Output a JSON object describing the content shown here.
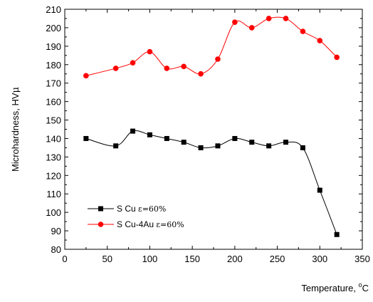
{
  "chart_data": {
    "type": "line",
    "xlabel": "Temperature, ",
    "xlabel_unit": "C",
    "xlabel_superscript": "o",
    "ylabel": "Microhardness, HV",
    "ylabel_unit": "μ",
    "xlim": [
      0,
      350
    ],
    "ylim": [
      80,
      210
    ],
    "xticks": [
      0,
      50,
      100,
      150,
      200,
      250,
      300,
      350
    ],
    "yticks": [
      80,
      90,
      100,
      110,
      120,
      130,
      140,
      150,
      160,
      170,
      180,
      190,
      200,
      210
    ],
    "grid": false,
    "legend_position": "bottom-left",
    "series": [
      {
        "name": "S Cu",
        "strain": "ε=60%",
        "color": "#000000",
        "marker": "square",
        "x": [
          25,
          60,
          80,
          100,
          120,
          140,
          160,
          180,
          200,
          220,
          240,
          260,
          280,
          300,
          320
        ],
        "y": [
          140,
          136,
          144,
          142,
          140,
          138,
          135,
          136,
          140,
          138,
          136,
          138,
          135,
          112,
          88
        ]
      },
      {
        "name": "S Cu-4Au",
        "strain": "ε=60%",
        "color": "#ff0000",
        "marker": "circle",
        "x": [
          25,
          60,
          80,
          100,
          120,
          140,
          160,
          180,
          200,
          220,
          240,
          260,
          280,
          300,
          320
        ],
        "y": [
          174,
          178,
          181,
          187,
          178,
          179,
          175,
          183,
          203,
          200,
          205,
          205,
          198,
          193,
          184
        ]
      }
    ]
  }
}
